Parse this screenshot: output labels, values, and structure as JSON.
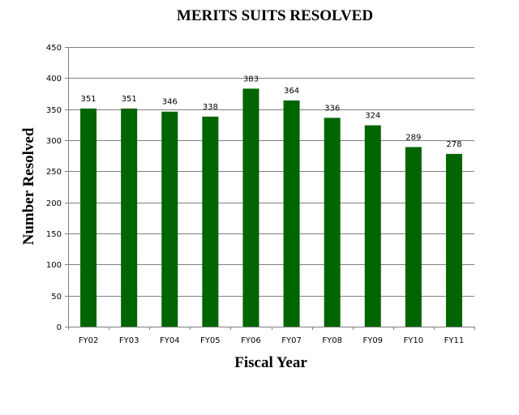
{
  "chart_data": {
    "type": "bar",
    "title": "MERITS SUITS RESOLVED",
    "xlabel": "Fiscal Year",
    "ylabel": "Number Resolved",
    "categories": [
      "FY02",
      "FY03",
      "FY04",
      "FY05",
      "FY06",
      "FY07",
      "FY08",
      "FY09",
      "FY10",
      "FY11"
    ],
    "values": [
      351,
      351,
      346,
      338,
      383,
      364,
      336,
      324,
      289,
      278
    ],
    "data_labels": [
      "351",
      "351",
      "346",
      "338",
      "383",
      "364",
      "336",
      "324",
      "289",
      "278"
    ],
    "ylim": [
      0,
      450
    ],
    "yticks": [
      0,
      50,
      100,
      150,
      200,
      250,
      300,
      350,
      400,
      450
    ],
    "grid": true,
    "legend": "none",
    "bar_color": "#006400"
  }
}
